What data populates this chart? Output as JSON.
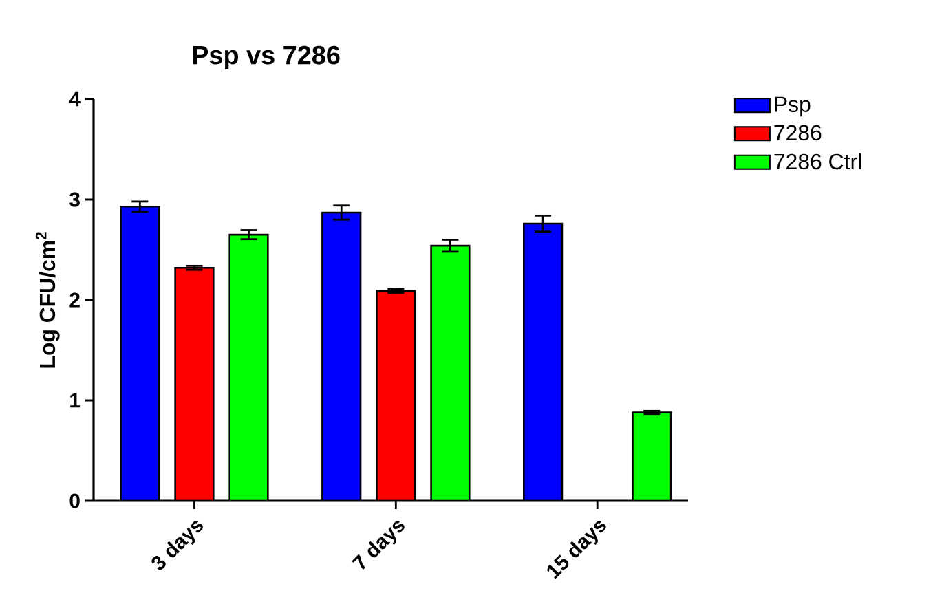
{
  "chart_data": {
    "type": "bar",
    "title": "Psp vs 7286",
    "ylabel": "Log CFU/cm$^{2}$",
    "categories": [
      "3 days",
      "7 days",
      "15 days"
    ],
    "series": [
      {
        "name": "Psp",
        "color": "#0000ff",
        "values": [
          2.93,
          2.87,
          2.76
        ],
        "errors": [
          0.05,
          0.07,
          0.08
        ]
      },
      {
        "name": "7286",
        "color": "#ff0000",
        "values": [
          2.32,
          2.09,
          null
        ],
        "errors": [
          0.02,
          0.02,
          null
        ]
      },
      {
        "name": "7286 Ctrl",
        "color": "#00ff00",
        "values": [
          2.65,
          2.54,
          0.88
        ],
        "errors": [
          0.045,
          0.06,
          0.015
        ]
      }
    ],
    "ylim": [
      0,
      4
    ],
    "yticks": [
      0,
      1,
      2,
      3,
      4
    ],
    "legend": "top right",
    "grid": false
  }
}
